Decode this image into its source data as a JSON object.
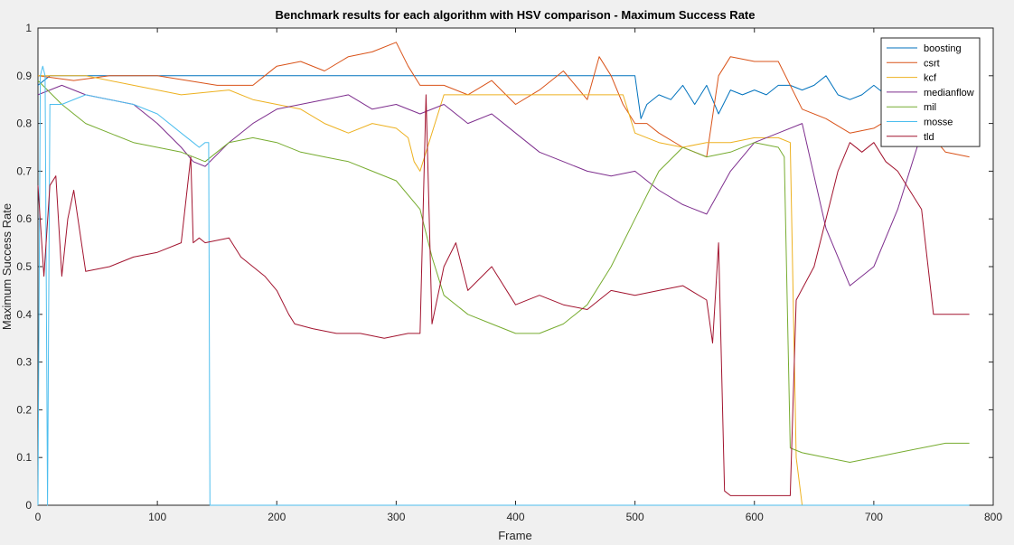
{
  "chart_data": {
    "type": "line",
    "title": "Benchmark results for each algorithm with HSV comparison - Maximum Success Rate",
    "xlabel": "Frame",
    "ylabel": "Maximum Success Rate",
    "xlim": [
      0,
      800
    ],
    "ylim": [
      0,
      1
    ],
    "xticks": [
      "0",
      "100",
      "200",
      "300",
      "400",
      "500",
      "600",
      "700",
      "800"
    ],
    "yticks": [
      "0",
      "0.1",
      "0.2",
      "0.3",
      "0.4",
      "0.5",
      "0.6",
      "0.7",
      "0.8",
      "0.9",
      "1"
    ],
    "grid": false,
    "legend_position": "top-right",
    "series": [
      {
        "name": "boosting",
        "color": "#0072bd",
        "x": [
          0,
          10,
          30,
          60,
          90,
          120,
          150,
          170,
          200,
          240,
          280,
          320,
          360,
          400,
          450,
          490,
          500,
          505,
          510,
          520,
          530,
          540,
          550,
          560,
          570,
          580,
          590,
          600,
          610,
          620,
          630,
          640,
          650,
          660,
          670,
          680,
          690,
          700,
          710,
          720,
          730,
          740,
          750,
          780
        ],
        "y": [
          0.88,
          0.9,
          0.9,
          0.9,
          0.9,
          0.9,
          0.9,
          0.9,
          0.9,
          0.9,
          0.9,
          0.9,
          0.9,
          0.9,
          0.9,
          0.9,
          0.9,
          0.81,
          0.84,
          0.86,
          0.85,
          0.88,
          0.84,
          0.88,
          0.82,
          0.87,
          0.86,
          0.87,
          0.86,
          0.88,
          0.88,
          0.87,
          0.88,
          0.9,
          0.86,
          0.85,
          0.86,
          0.88,
          0.86,
          0.9,
          0.88,
          0.84,
          0.9,
          0.9
        ]
      },
      {
        "name": "csrt",
        "color": "#d95319",
        "x": [
          0,
          30,
          60,
          100,
          150,
          180,
          190,
          200,
          220,
          240,
          260,
          280,
          300,
          310,
          320,
          340,
          360,
          380,
          400,
          420,
          440,
          460,
          470,
          480,
          490,
          500,
          510,
          520,
          540,
          560,
          570,
          580,
          600,
          620,
          640,
          660,
          680,
          700,
          720,
          730,
          740,
          760,
          780
        ],
        "y": [
          0.9,
          0.89,
          0.9,
          0.9,
          0.88,
          0.88,
          0.9,
          0.92,
          0.93,
          0.91,
          0.94,
          0.95,
          0.97,
          0.92,
          0.88,
          0.88,
          0.86,
          0.89,
          0.84,
          0.87,
          0.91,
          0.85,
          0.94,
          0.9,
          0.84,
          0.8,
          0.8,
          0.78,
          0.75,
          0.73,
          0.9,
          0.94,
          0.93,
          0.93,
          0.83,
          0.81,
          0.78,
          0.79,
          0.82,
          0.84,
          0.8,
          0.74,
          0.73
        ]
      },
      {
        "name": "kcf",
        "color": "#edb120",
        "x": [
          0,
          40,
          80,
          120,
          160,
          180,
          200,
          220,
          240,
          260,
          280,
          300,
          310,
          315,
          320,
          340,
          400,
          450,
          490,
          500,
          520,
          540,
          560,
          580,
          600,
          620,
          630,
          635,
          640
        ],
        "y": [
          0.9,
          0.9,
          0.88,
          0.86,
          0.87,
          0.85,
          0.84,
          0.83,
          0.8,
          0.78,
          0.8,
          0.79,
          0.77,
          0.72,
          0.7,
          0.86,
          0.86,
          0.86,
          0.86,
          0.78,
          0.76,
          0.75,
          0.76,
          0.76,
          0.77,
          0.77,
          0.76,
          0.1,
          0.0
        ]
      },
      {
        "name": "medianflow",
        "color": "#7e2f8e",
        "x": [
          0,
          20,
          40,
          60,
          80,
          100,
          120,
          130,
          140,
          160,
          180,
          200,
          220,
          240,
          260,
          280,
          300,
          320,
          340,
          360,
          380,
          400,
          420,
          440,
          460,
          480,
          500,
          520,
          540,
          560,
          580,
          600,
          620,
          640,
          660,
          680,
          700,
          720,
          740,
          760,
          780
        ],
        "y": [
          0.86,
          0.88,
          0.86,
          0.85,
          0.84,
          0.8,
          0.75,
          0.72,
          0.71,
          0.76,
          0.8,
          0.83,
          0.84,
          0.85,
          0.86,
          0.83,
          0.84,
          0.82,
          0.84,
          0.8,
          0.82,
          0.78,
          0.74,
          0.72,
          0.7,
          0.69,
          0.7,
          0.66,
          0.63,
          0.61,
          0.7,
          0.76,
          0.78,
          0.8,
          0.58,
          0.46,
          0.5,
          0.62,
          0.78,
          0.86,
          0.9
        ]
      },
      {
        "name": "mil",
        "color": "#77ac30",
        "x": [
          0,
          20,
          40,
          60,
          80,
          100,
          120,
          140,
          160,
          180,
          200,
          220,
          240,
          260,
          280,
          300,
          320,
          330,
          340,
          360,
          380,
          400,
          420,
          440,
          460,
          480,
          500,
          520,
          540,
          560,
          580,
          600,
          620,
          625,
          630,
          640,
          660,
          680,
          700,
          720,
          740,
          760,
          780
        ],
        "y": [
          0.89,
          0.84,
          0.8,
          0.78,
          0.76,
          0.75,
          0.74,
          0.72,
          0.76,
          0.77,
          0.76,
          0.74,
          0.73,
          0.72,
          0.7,
          0.68,
          0.62,
          0.52,
          0.44,
          0.4,
          0.38,
          0.36,
          0.36,
          0.38,
          0.42,
          0.5,
          0.6,
          0.7,
          0.75,
          0.73,
          0.74,
          0.76,
          0.75,
          0.73,
          0.12,
          0.11,
          0.1,
          0.09,
          0.1,
          0.11,
          0.12,
          0.13,
          0.13
        ]
      },
      {
        "name": "mosse",
        "color": "#4dbeee",
        "x": [
          0,
          2,
          4,
          6,
          8,
          10,
          20,
          40,
          60,
          80,
          100,
          120,
          130,
          135,
          140,
          143,
          144,
          160,
          200,
          400,
          600,
          780
        ],
        "y": [
          0.0,
          0.9,
          0.92,
          0.9,
          0.0,
          0.84,
          0.84,
          0.86,
          0.85,
          0.84,
          0.82,
          0.78,
          0.76,
          0.75,
          0.76,
          0.76,
          0.0,
          0.0,
          0.0,
          0.0,
          0.0,
          0.0
        ]
      },
      {
        "name": "tld",
        "color": "#a2142f",
        "x": [
          0,
          5,
          10,
          15,
          20,
          25,
          30,
          40,
          60,
          80,
          100,
          120,
          128,
          130,
          135,
          140,
          160,
          170,
          180,
          190,
          200,
          210,
          215,
          230,
          250,
          270,
          290,
          310,
          320,
          325,
          330,
          340,
          350,
          360,
          380,
          400,
          420,
          440,
          460,
          480,
          500,
          520,
          540,
          560,
          565,
          570,
          575,
          580,
          600,
          620,
          630,
          635,
          650,
          660,
          670,
          680,
          690,
          700,
          710,
          720,
          730,
          740,
          750,
          760,
          770,
          780
        ],
        "y": [
          0.67,
          0.48,
          0.67,
          0.69,
          0.48,
          0.6,
          0.66,
          0.49,
          0.5,
          0.52,
          0.53,
          0.55,
          0.73,
          0.55,
          0.56,
          0.55,
          0.56,
          0.52,
          0.5,
          0.48,
          0.45,
          0.4,
          0.38,
          0.37,
          0.36,
          0.36,
          0.35,
          0.36,
          0.36,
          0.86,
          0.38,
          0.5,
          0.55,
          0.45,
          0.5,
          0.42,
          0.44,
          0.42,
          0.41,
          0.45,
          0.44,
          0.45,
          0.46,
          0.43,
          0.34,
          0.55,
          0.03,
          0.02,
          0.02,
          0.02,
          0.02,
          0.43,
          0.5,
          0.6,
          0.7,
          0.76,
          0.74,
          0.76,
          0.72,
          0.7,
          0.66,
          0.62,
          0.4,
          0.4,
          0.4,
          0.4
        ]
      }
    ]
  }
}
